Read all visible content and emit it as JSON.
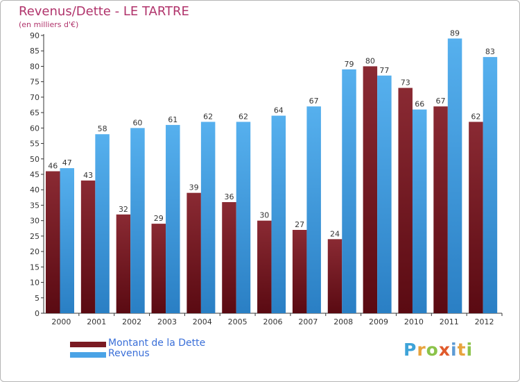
{
  "header": {
    "title": "Revenus/Dette - LE TARTRE",
    "subtitle": "(en milliers d'€)"
  },
  "legend": {
    "debt_label": "Montant de la Dette",
    "revenue_label": "Revenus"
  },
  "brand": {
    "letters": [
      "P",
      "r",
      "o",
      "x",
      "i",
      "t",
      "i"
    ],
    "colors": [
      "#3ea3d8",
      "#e8a33d",
      "#8bc34a",
      "#e05a2b",
      "#5d9bd5",
      "#e8a33d",
      "#8bc34a"
    ]
  },
  "colors": {
    "debt": "#7a1a22",
    "revenue": "#4aa3e6",
    "axis": "#333333",
    "title": "#b0336b"
  },
  "chart_data": {
    "type": "bar",
    "title": "Revenus/Dette - LE TARTRE",
    "subtitle": "(en milliers d'€)",
    "categories": [
      "2000",
      "2001",
      "2002",
      "2003",
      "2004",
      "2005",
      "2006",
      "2007",
      "2008",
      "2009",
      "2010",
      "2011",
      "2012"
    ],
    "series": [
      {
        "name": "Montant de la Dette",
        "values": [
          46,
          43,
          32,
          29,
          39,
          36,
          30,
          27,
          24,
          80,
          73,
          67,
          62
        ]
      },
      {
        "name": "Revenus",
        "values": [
          47,
          58,
          60,
          61,
          62,
          62,
          64,
          67,
          79,
          77,
          66,
          89,
          83
        ]
      }
    ],
    "ylim": [
      0,
      90
    ],
    "yticks": [
      0,
      5,
      10,
      15,
      20,
      25,
      30,
      35,
      40,
      45,
      50,
      55,
      60,
      65,
      70,
      75,
      80,
      85,
      90
    ],
    "grid": false,
    "legend_position": "bottom-left"
  }
}
